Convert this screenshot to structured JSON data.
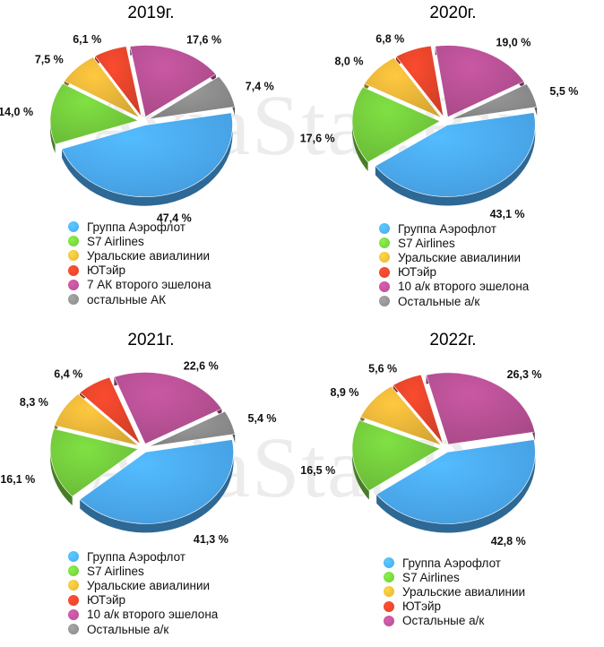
{
  "watermark": "AviaStat.Ru",
  "chart_data": [
    {
      "type": "pie",
      "title": "2019г.",
      "labels": [
        "Группа Аэрофлот",
        "S7 Airlines",
        "Уральские авиалинии",
        "ЮТэйр",
        "7 АК второго эшелона",
        "остальные АК"
      ],
      "values": [
        47.4,
        14.0,
        7.5,
        6.1,
        17.6,
        7.4
      ],
      "value_labels": [
        "47,4 %",
        "14,0 %",
        "7,5 %",
        "6,1 %",
        "17,6 %",
        "7,4 %"
      ],
      "colors": [
        "#4aa8f0",
        "#72c93c",
        "#e6b338",
        "#e0432a",
        "#b44f92",
        "#8a8a8a"
      ],
      "legend": "bottom"
    },
    {
      "type": "pie",
      "title": "2020г.",
      "labels": [
        "Группа Аэрофлот",
        "S7 Airlines",
        "Уральские авиалинии",
        "ЮТэйр",
        "10 а/к второго эшелона",
        "Остальные а/к"
      ],
      "values": [
        43.1,
        17.6,
        8.0,
        6.8,
        19.0,
        5.5
      ],
      "value_labels": [
        "43,1 %",
        "17,6 %",
        "8,0 %",
        "6,8 %",
        "19,0 %",
        "5,5 %"
      ],
      "colors": [
        "#4aa8f0",
        "#72c93c",
        "#e6b338",
        "#e0432a",
        "#b44f92",
        "#8a8a8a"
      ],
      "legend": "bottom"
    },
    {
      "type": "pie",
      "title": "2021г.",
      "labels": [
        "Группа Аэрофлот",
        "S7 Airlines",
        "Уральские авиалинии",
        "ЮТэйр",
        "10 а/к второго эшелона",
        "Остальные а/к"
      ],
      "values": [
        41.3,
        16.1,
        8.3,
        6.4,
        22.6,
        5.4
      ],
      "value_labels": [
        "41,3 %",
        "16,1 %",
        "8,3 %",
        "6,4 %",
        "22,6 %",
        "5,4 %"
      ],
      "colors": [
        "#4aa8f0",
        "#72c93c",
        "#e6b338",
        "#e0432a",
        "#b44f92",
        "#8a8a8a"
      ],
      "legend": "bottom"
    },
    {
      "type": "pie",
      "title": "2022г.",
      "labels": [
        "Группа Аэрофлот",
        "S7 Airlines",
        "Уральские авиалинии",
        "ЮТэйр",
        "Остальные а/к"
      ],
      "values": [
        42.8,
        16.5,
        8.9,
        5.6,
        26.3
      ],
      "value_labels": [
        "42,8 %",
        "16,5 %",
        "8,9 %",
        "5,6 %",
        "26,3 %"
      ],
      "colors": [
        "#4aa8f0",
        "#72c93c",
        "#e6b338",
        "#e0432a",
        "#b44f92"
      ],
      "legend": "bottom"
    }
  ]
}
